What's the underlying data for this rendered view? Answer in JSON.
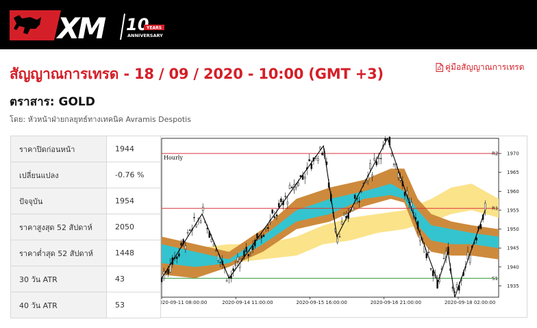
{
  "brand": {
    "name": "XM",
    "badge_number": "10",
    "badge_word": "YEARS",
    "badge_sub": "ANNIVERSARY"
  },
  "header": {
    "title": "สัญญาณการเทรด - 18 / 09 / 2020 - 10:00 (GMT +3)",
    "guide_link": "คู่มือสัญญาณการเทรด",
    "instrument": "ตราสาร: GOLD",
    "author": "โดย: หัวหน้าฝ่ายกลยุทธ์ทางเทคนิค Avramis Despotis"
  },
  "stats": [
    {
      "label": "ราคาปิดก่อนหน้า",
      "value": "1944"
    },
    {
      "label": "เปลี่ยนแปลง",
      "value": "-0.76 %"
    },
    {
      "label": "ปัจจุบัน",
      "value": "1954"
    },
    {
      "label": "ราคาสูงสุด 52 สัปดาห์",
      "value": "2050"
    },
    {
      "label": "ราคาต่ำสุด 52 สัปดาห์",
      "value": "1448"
    },
    {
      "label": "30 วัน ATR",
      "value": "43"
    },
    {
      "label": "40 วัน ATR",
      "value": "53"
    }
  ],
  "chart_data": {
    "type": "line",
    "title": "Hourly",
    "ylim": [
      1932,
      1974
    ],
    "y_ticks": [
      1935,
      1940,
      1945,
      1950,
      1955,
      1960,
      1965,
      1970
    ],
    "x_tick_labels": [
      "2020-09-11 08:00:00",
      "2020-09-14 11:00:00",
      "2020-09-15 16:00:00",
      "2020-09-16 21:00:00",
      "2020-09-18 02:00:00"
    ],
    "levels": [
      {
        "name": "R2",
        "value": 1970,
        "color": "#d9333a"
      },
      {
        "name": "R1",
        "value": 1955.5,
        "color": "#d9333a"
      },
      {
        "name": "S1",
        "value": 1937,
        "color": "#2f9a3a"
      }
    ],
    "zigzag": [
      {
        "t": 0,
        "p": 1937
      },
      {
        "t": 12,
        "p": 1954
      },
      {
        "t": 20,
        "p": 1937
      },
      {
        "t": 48,
        "p": 1972
      },
      {
        "t": 52,
        "p": 1948
      },
      {
        "t": 67,
        "p": 1974
      },
      {
        "t": 77,
        "p": 1948
      },
      {
        "t": 82,
        "p": 1936
      },
      {
        "t": 85,
        "p": 1944
      },
      {
        "t": 87,
        "p": 1932
      },
      {
        "t": 96,
        "p": 1955
      }
    ],
    "colors": {
      "ichimoku_outer": "#cd8a3c",
      "ichimoku_inner": "#34c4cf",
      "ichimoku_light": "#fbe38a",
      "candles": "#111111"
    }
  }
}
